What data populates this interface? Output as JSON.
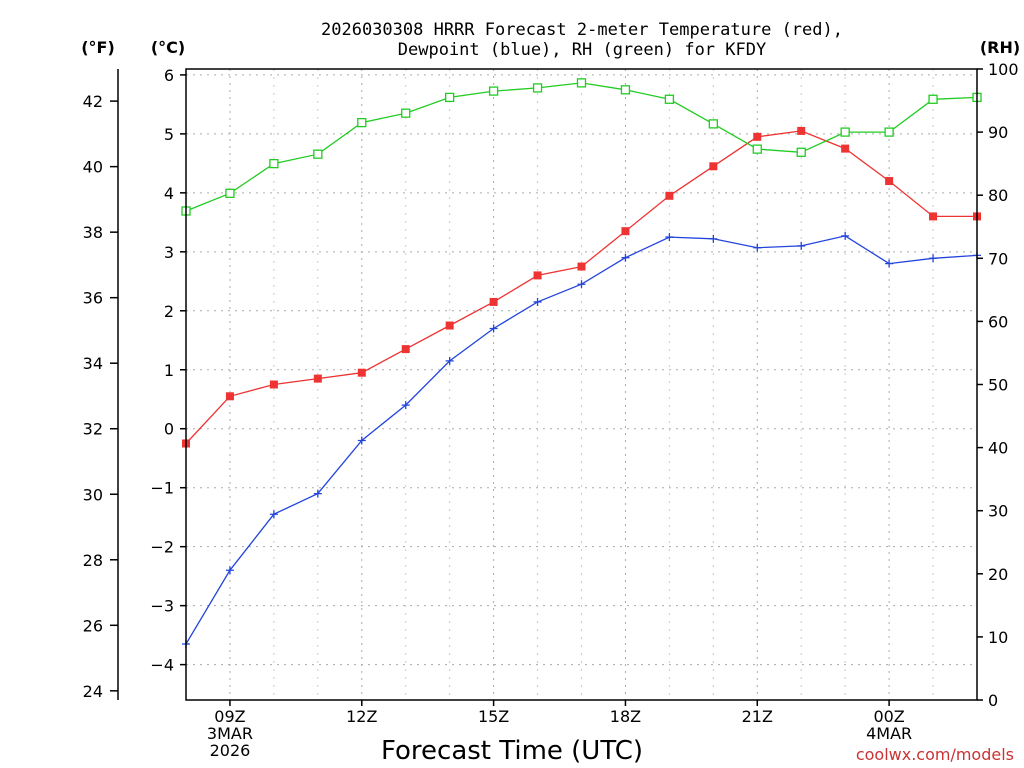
{
  "chart_data": {
    "type": "line",
    "title_line1": "2026030308 HRRR Forecast 2-meter Temperature (red),",
    "title_line2": "Dewpoint (blue), RH (green) for KFDY",
    "xlabel": "Forecast Time (UTC)",
    "credit": "coolwx.com/models",
    "unit_labels": {
      "fahrenheit": "(°F)",
      "celsius": "(°C)",
      "rh": "(RH)"
    },
    "x_range_hours": [
      8,
      26
    ],
    "celsius_range": [
      -4.6,
      6.1
    ],
    "fahrenheit_ticks": [
      24,
      26,
      28,
      30,
      32,
      34,
      36,
      38,
      40,
      42
    ],
    "celsius_ticks": [
      -4,
      -3,
      -2,
      -1,
      0,
      1,
      2,
      3,
      4,
      5,
      6
    ],
    "celsius_tick_labels": [
      "−4",
      "−3",
      "−2",
      "−1",
      "0",
      "1",
      "2",
      "3",
      "4",
      "5",
      "6"
    ],
    "rh_range": [
      0,
      100
    ],
    "rh_ticks": [
      0,
      10,
      20,
      30,
      40,
      50,
      60,
      70,
      80,
      90,
      100
    ],
    "x_ticks": [
      {
        "hour": 9,
        "line1": "09Z",
        "line2": "3MAR",
        "line3": "2026"
      },
      {
        "hour": 12,
        "line1": "12Z",
        "line2": "",
        "line3": ""
      },
      {
        "hour": 15,
        "line1": "15Z",
        "line2": "",
        "line3": ""
      },
      {
        "hour": 18,
        "line1": "18Z",
        "line2": "",
        "line3": ""
      },
      {
        "hour": 21,
        "line1": "21Z",
        "line2": "",
        "line3": ""
      },
      {
        "hour": 24,
        "line1": "00Z",
        "line2": "4MAR",
        "line3": ""
      }
    ],
    "x": [
      8,
      9,
      10,
      11,
      12,
      13,
      14,
      15,
      16,
      17,
      18,
      19,
      20,
      21,
      22,
      23,
      24,
      25,
      26
    ],
    "series": [
      {
        "name": "Temperature",
        "unit": "°C",
        "color": "#ee3333",
        "marker": "filled-square",
        "values": [
          -0.25,
          0.55,
          0.75,
          0.85,
          0.95,
          1.35,
          1.75,
          2.15,
          2.6,
          2.75,
          3.35,
          3.95,
          4.45,
          4.95,
          5.05,
          4.75,
          4.2,
          3.6,
          3.6
        ]
      },
      {
        "name": "Dewpoint",
        "unit": "°C",
        "color": "#2244dd",
        "marker": "plus",
        "values": [
          -3.65,
          -2.4,
          -1.45,
          -1.1,
          -0.2,
          0.4,
          1.15,
          1.7,
          2.15,
          2.45,
          2.9,
          3.25,
          3.22,
          3.07,
          3.1,
          3.27,
          2.8,
          2.89,
          2.94
        ]
      },
      {
        "name": "RH",
        "unit": "%",
        "color": "#22cc22",
        "marker": "open-square",
        "values": [
          77.5,
          80.3,
          85.0,
          86.5,
          91.5,
          93.0,
          95.5,
          96.5,
          97.0,
          97.8,
          96.7,
          95.2,
          91.3,
          87.3,
          86.8,
          90.0,
          90.0,
          95.2,
          95.5
        ]
      }
    ]
  }
}
